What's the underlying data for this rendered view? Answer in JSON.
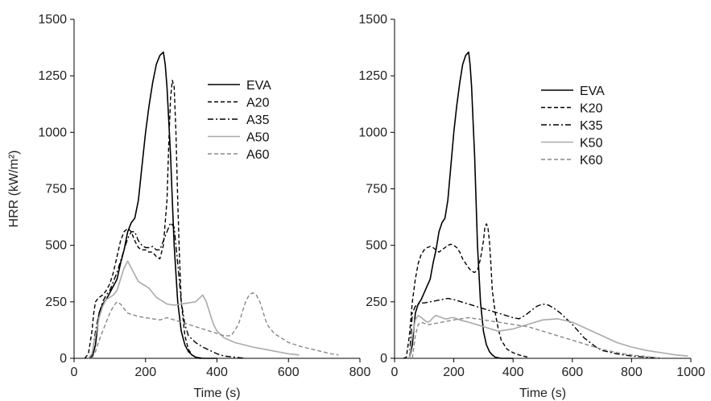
{
  "chart_data": [
    {
      "type": "line",
      "xlabel": "Time (s)",
      "ylabel": "HRR (kW/m²)",
      "xlim": [
        0,
        800
      ],
      "ylim": [
        0,
        1500
      ],
      "xticks": [
        "0",
        "200",
        "400",
        "600",
        "800"
      ],
      "yticks": [
        "0",
        "250",
        "500",
        "750",
        "1000",
        "1250",
        "1500"
      ],
      "grid": false,
      "legend_position": "top-right",
      "series": [
        {
          "name": "EVA",
          "color": "#000000",
          "style": "solid",
          "x": [
            50,
            60,
            70,
            80,
            90,
            100,
            110,
            120,
            130,
            140,
            150,
            160,
            170,
            180,
            190,
            200,
            210,
            220,
            230,
            240,
            250,
            255,
            260,
            265,
            270,
            275,
            280,
            290,
            300,
            310,
            320,
            330,
            340,
            360,
            380,
            400
          ],
          "y": [
            0,
            60,
            200,
            240,
            260,
            290,
            320,
            350,
            420,
            480,
            560,
            600,
            620,
            700,
            850,
            1000,
            1120,
            1220,
            1300,
            1340,
            1355,
            1300,
            1200,
            1050,
            900,
            700,
            500,
            250,
            120,
            60,
            30,
            15,
            5,
            0,
            0,
            0
          ]
        },
        {
          "name": "A20",
          "color": "#000000",
          "style": "dash",
          "x": [
            30,
            40,
            50,
            55,
            60,
            70,
            80,
            90,
            100,
            110,
            120,
            130,
            140,
            150,
            160,
            170,
            180,
            190,
            200,
            210,
            220,
            230,
            240,
            250,
            260,
            265,
            270,
            275,
            280,
            285,
            290,
            295,
            300,
            310,
            320,
            330,
            340,
            350,
            360
          ],
          "y": [
            0,
            20,
            120,
            200,
            250,
            270,
            280,
            300,
            330,
            380,
            450,
            520,
            560,
            575,
            560,
            520,
            490,
            480,
            480,
            470,
            470,
            450,
            440,
            500,
            700,
            950,
            1150,
            1230,
            1200,
            1000,
            700,
            450,
            250,
            100,
            40,
            15,
            5,
            0,
            0
          ]
        },
        {
          "name": "A35",
          "color": "#000000",
          "style": "dashdot",
          "x": [
            40,
            50,
            60,
            70,
            80,
            90,
            100,
            110,
            120,
            130,
            140,
            150,
            160,
            170,
            180,
            190,
            200,
            210,
            220,
            230,
            240,
            250,
            260,
            270,
            280,
            290,
            300,
            310,
            320,
            340,
            360,
            380,
            400,
            420,
            450,
            480
          ],
          "y": [
            0,
            10,
            120,
            200,
            250,
            280,
            300,
            340,
            380,
            430,
            480,
            530,
            560,
            560,
            520,
            500,
            490,
            490,
            495,
            480,
            480,
            520,
            560,
            600,
            580,
            420,
            250,
            150,
            100,
            70,
            50,
            35,
            20,
            10,
            5,
            0
          ]
        },
        {
          "name": "A50",
          "color": "#aaaaaa",
          "style": "solid",
          "x": [
            40,
            50,
            60,
            70,
            80,
            90,
            100,
            110,
            120,
            130,
            140,
            150,
            160,
            170,
            180,
            190,
            200,
            210,
            220,
            230,
            240,
            250,
            260,
            280,
            300,
            320,
            340,
            360,
            370,
            380,
            390,
            400,
            420,
            450,
            500,
            550,
            600,
            630
          ],
          "y": [
            0,
            20,
            100,
            180,
            230,
            260,
            270,
            280,
            300,
            350,
            400,
            430,
            400,
            370,
            340,
            330,
            320,
            310,
            290,
            270,
            260,
            250,
            240,
            235,
            240,
            245,
            250,
            280,
            250,
            200,
            150,
            120,
            90,
            70,
            50,
            35,
            20,
            15
          ]
        },
        {
          "name": "A60",
          "color": "#888888",
          "style": "dash",
          "x": [
            50,
            60,
            70,
            80,
            90,
            100,
            110,
            120,
            130,
            140,
            150,
            160,
            170,
            180,
            200,
            220,
            240,
            260,
            280,
            300,
            320,
            340,
            360,
            380,
            400,
            420,
            440,
            460,
            480,
            490,
            500,
            510,
            520,
            530,
            540,
            560,
            580,
            600,
            640,
            680,
            720,
            740
          ],
          "y": [
            0,
            30,
            80,
            120,
            160,
            200,
            230,
            250,
            240,
            220,
            200,
            195,
            190,
            185,
            180,
            175,
            170,
            180,
            170,
            160,
            150,
            140,
            130,
            120,
            110,
            100,
            100,
            150,
            250,
            280,
            290,
            280,
            250,
            200,
            150,
            110,
            90,
            70,
            50,
            35,
            20,
            15
          ]
        }
      ]
    },
    {
      "type": "line",
      "xlabel": "Time (s)",
      "ylabel": "",
      "xlim": [
        0,
        1000
      ],
      "ylim": [
        0,
        1500
      ],
      "xticks": [
        "0",
        "200",
        "400",
        "600",
        "800",
        "1000"
      ],
      "yticks": [
        "0",
        "250",
        "500",
        "750",
        "1000",
        "1250",
        "1500"
      ],
      "grid": false,
      "legend_position": "top-right",
      "series": [
        {
          "name": "EVA",
          "color": "#000000",
          "style": "solid",
          "x": [
            50,
            60,
            70,
            80,
            90,
            100,
            110,
            120,
            130,
            140,
            150,
            160,
            170,
            180,
            190,
            200,
            210,
            220,
            230,
            240,
            250,
            255,
            260,
            265,
            270,
            275,
            280,
            290,
            300,
            310,
            320,
            330,
            340,
            360,
            380,
            400
          ],
          "y": [
            0,
            60,
            200,
            240,
            260,
            290,
            320,
            350,
            420,
            480,
            560,
            600,
            620,
            700,
            850,
            1000,
            1120,
            1220,
            1300,
            1340,
            1355,
            1300,
            1200,
            1050,
            900,
            700,
            500,
            250,
            120,
            60,
            30,
            15,
            5,
            0,
            0,
            0
          ]
        },
        {
          "name": "K20",
          "color": "#000000",
          "style": "dash",
          "x": [
            30,
            40,
            50,
            60,
            70,
            80,
            90,
            100,
            110,
            120,
            130,
            140,
            150,
            160,
            170,
            180,
            190,
            200,
            210,
            220,
            230,
            240,
            250,
            260,
            270,
            280,
            290,
            300,
            305,
            310,
            315,
            320,
            325,
            330,
            340,
            350,
            360,
            380,
            400,
            420,
            450
          ],
          "y": [
            0,
            5,
            100,
            250,
            350,
            420,
            460,
            480,
            490,
            495,
            490,
            480,
            470,
            480,
            490,
            500,
            505,
            500,
            490,
            470,
            440,
            420,
            400,
            385,
            380,
            390,
            440,
            520,
            580,
            595,
            580,
            520,
            420,
            300,
            200,
            130,
            80,
            40,
            25,
            15,
            5
          ]
        },
        {
          "name": "K35",
          "color": "#000000",
          "style": "dashdot",
          "x": [
            50,
            60,
            70,
            80,
            90,
            100,
            120,
            140,
            160,
            180,
            200,
            250,
            300,
            350,
            400,
            420,
            440,
            460,
            480,
            500,
            520,
            540,
            560,
            580,
            600,
            620,
            640,
            660,
            680,
            700,
            750,
            800,
            850,
            900
          ],
          "y": [
            0,
            200,
            230,
            240,
            245,
            245,
            250,
            255,
            260,
            265,
            260,
            240,
            220,
            200,
            180,
            175,
            190,
            210,
            230,
            240,
            235,
            220,
            200,
            175,
            150,
            120,
            90,
            70,
            50,
            35,
            20,
            10,
            5,
            0
          ]
        },
        {
          "name": "K50",
          "color": "#aaaaaa",
          "style": "solid",
          "x": [
            50,
            60,
            70,
            80,
            90,
            100,
            110,
            120,
            130,
            140,
            150,
            160,
            170,
            180,
            190,
            200,
            220,
            250,
            300,
            350,
            400,
            450,
            500,
            550,
            600,
            650,
            700,
            750,
            800,
            850,
            900,
            950,
            990
          ],
          "y": [
            0,
            100,
            170,
            190,
            180,
            170,
            160,
            165,
            180,
            190,
            185,
            180,
            175,
            175,
            180,
            180,
            170,
            160,
            140,
            120,
            130,
            150,
            170,
            175,
            160,
            130,
            100,
            70,
            50,
            35,
            25,
            15,
            10
          ]
        },
        {
          "name": "K60",
          "color": "#888888",
          "style": "dash",
          "x": [
            60,
            70,
            80,
            90,
            100,
            110,
            120,
            140,
            160,
            180,
            200,
            250,
            300,
            350,
            400,
            450,
            500,
            550,
            600,
            650,
            700,
            750,
            800,
            850,
            900
          ],
          "y": [
            0,
            100,
            150,
            160,
            155,
            150,
            150,
            155,
            160,
            165,
            170,
            180,
            170,
            160,
            150,
            140,
            120,
            100,
            80,
            60,
            40,
            25,
            15,
            8,
            0
          ]
        }
      ]
    }
  ]
}
